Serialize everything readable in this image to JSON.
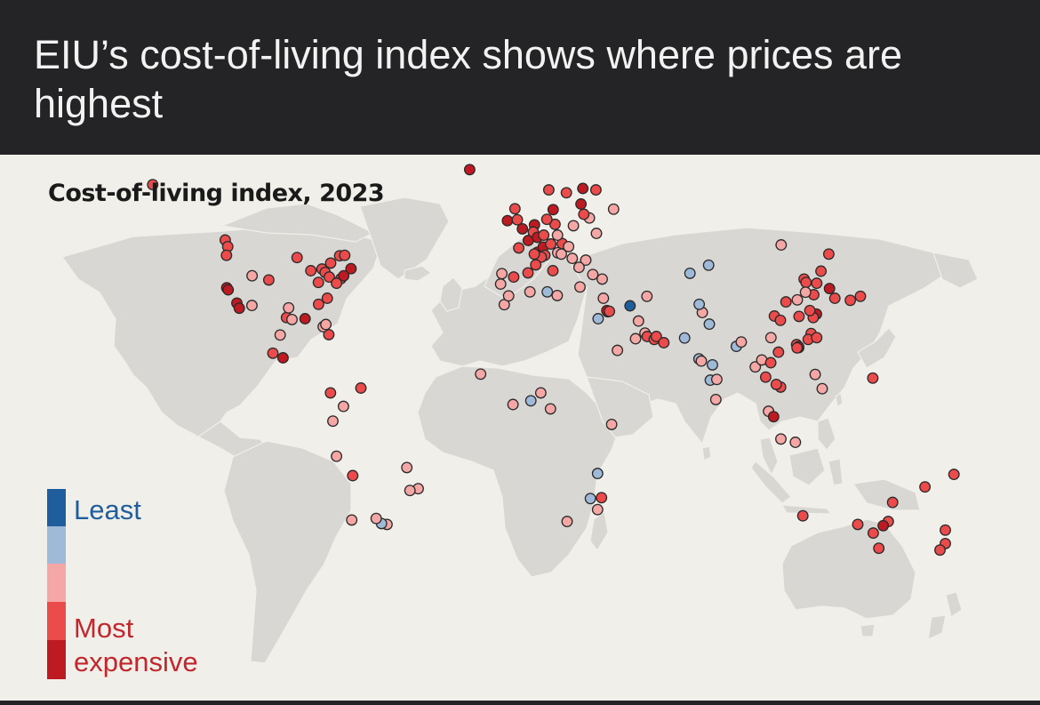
{
  "headline": "EIU’s cost-of-living index shows where prices are highest",
  "chart_title": "Cost-of-living index, 2023",
  "legend": {
    "least_label": "Least",
    "most_label": "Most",
    "expensive_label": "expensive",
    "scale": [
      "#1f5e9c",
      "#9fbad8",
      "#f4a7a5",
      "#ec4b4b",
      "#be1a21"
    ]
  },
  "colors": {
    "land": "#d8d7d3",
    "sea": "#f0efea",
    "header": "#242426",
    "marker_outline": "#2a2a2a"
  },
  "chart_data": {
    "type": "scatter",
    "value_scale": "1 = least expensive ... 5 = most expensive",
    "points": [
      {
        "lon": -153,
        "lat": 61,
        "v": 4
      },
      {
        "lon": -123,
        "lat": 49,
        "v": 4
      },
      {
        "lon": -122,
        "lat": 47.5,
        "v": 4
      },
      {
        "lon": -122.5,
        "lat": 45.5,
        "v": 4
      },
      {
        "lon": -122.4,
        "lat": 37.8,
        "v": 5
      },
      {
        "lon": -121.8,
        "lat": 37.3,
        "v": 5
      },
      {
        "lon": -118.2,
        "lat": 34,
        "v": 5
      },
      {
        "lon": -117.2,
        "lat": 32.7,
        "v": 5
      },
      {
        "lon": -112,
        "lat": 33.4,
        "v": 3
      },
      {
        "lon": -111.9,
        "lat": 40.7,
        "v": 3
      },
      {
        "lon": -105,
        "lat": 39.7,
        "v": 4
      },
      {
        "lon": -97.7,
        "lat": 30.3,
        "v": 4
      },
      {
        "lon": -96.8,
        "lat": 32.8,
        "v": 3
      },
      {
        "lon": -95.4,
        "lat": 29.8,
        "v": 3
      },
      {
        "lon": -90,
        "lat": 30,
        "v": 5
      },
      {
        "lon": -93.3,
        "lat": 45,
        "v": 4
      },
      {
        "lon": -87.6,
        "lat": 41.9,
        "v": 4
      },
      {
        "lon": -83,
        "lat": 42.3,
        "v": 4
      },
      {
        "lon": -81.7,
        "lat": 41.5,
        "v": 4
      },
      {
        "lon": -84.4,
        "lat": 33.7,
        "v": 4
      },
      {
        "lon": -84.5,
        "lat": 39.1,
        "v": 4
      },
      {
        "lon": -79.4,
        "lat": 43.7,
        "v": 4
      },
      {
        "lon": -75.7,
        "lat": 45.4,
        "v": 4
      },
      {
        "lon": -73.6,
        "lat": 45.5,
        "v": 4
      },
      {
        "lon": -80,
        "lat": 40.4,
        "v": 4
      },
      {
        "lon": -75.2,
        "lat": 40,
        "v": 4
      },
      {
        "lon": -74,
        "lat": 40.7,
        "v": 5
      },
      {
        "lon": -71,
        "lat": 42.4,
        "v": 5
      },
      {
        "lon": -77,
        "lat": 38.9,
        "v": 4
      },
      {
        "lon": -80.8,
        "lat": 35.2,
        "v": 4
      },
      {
        "lon": -80.2,
        "lat": 25.8,
        "v": 4
      },
      {
        "lon": -82.5,
        "lat": 27.9,
        "v": 3
      },
      {
        "lon": -81.4,
        "lat": 28.5,
        "v": 3
      },
      {
        "lon": -103.3,
        "lat": 20.7,
        "v": 4
      },
      {
        "lon": -100.3,
        "lat": 25.7,
        "v": 3
      },
      {
        "lon": -99.1,
        "lat": 19.4,
        "v": 5
      },
      {
        "lon": -79.5,
        "lat": 9,
        "v": 4
      },
      {
        "lon": -66.9,
        "lat": 10.5,
        "v": 4
      },
      {
        "lon": -74.1,
        "lat": 4.7,
        "v": 3
      },
      {
        "lon": -78.5,
        "lat": -0.2,
        "v": 3
      },
      {
        "lon": -77,
        "lat": -12,
        "v": 3
      },
      {
        "lon": -70.3,
        "lat": -18.5,
        "v": 4
      },
      {
        "lon": -56.1,
        "lat": -34.9,
        "v": 3
      },
      {
        "lon": -58.4,
        "lat": -34.6,
        "v": 2
      },
      {
        "lon": -60.6,
        "lat": -32.9,
        "v": 3
      },
      {
        "lon": -70.7,
        "lat": -33.4,
        "v": 3
      },
      {
        "lon": -43.2,
        "lat": -22.9,
        "v": 3
      },
      {
        "lon": -46.6,
        "lat": -23.5,
        "v": 3
      },
      {
        "lon": -47.9,
        "lat": -15.8,
        "v": 3
      },
      {
        "lon": -21.9,
        "lat": 64.1,
        "v": 5
      },
      {
        "lon": -6.3,
        "lat": 53.3,
        "v": 5
      },
      {
        "lon": -3.2,
        "lat": 55.9,
        "v": 4
      },
      {
        "lon": -2.2,
        "lat": 53.5,
        "v": 4
      },
      {
        "lon": -0.1,
        "lat": 51.5,
        "v": 5
      },
      {
        "lon": 2.3,
        "lat": 48.9,
        "v": 5
      },
      {
        "lon": 4.9,
        "lat": 52.4,
        "v": 5
      },
      {
        "lon": 4.4,
        "lat": 50.8,
        "v": 4
      },
      {
        "lon": 6.1,
        "lat": 49.6,
        "v": 5
      },
      {
        "lon": 8.7,
        "lat": 50.1,
        "v": 4
      },
      {
        "lon": 6.1,
        "lat": 46.2,
        "v": 5
      },
      {
        "lon": 8.5,
        "lat": 47.4,
        "v": 5
      },
      {
        "lon": 11.6,
        "lat": 48.1,
        "v": 4
      },
      {
        "lon": 13.4,
        "lat": 52.5,
        "v": 4
      },
      {
        "lon": 10,
        "lat": 53.6,
        "v": 4
      },
      {
        "lon": 12.6,
        "lat": 55.7,
        "v": 5
      },
      {
        "lon": 10.8,
        "lat": 59.9,
        "v": 4
      },
      {
        "lon": 18.1,
        "lat": 59.3,
        "v": 4
      },
      {
        "lon": 24.9,
        "lat": 60.2,
        "v": 5
      },
      {
        "lon": 16.4,
        "lat": 48.2,
        "v": 4
      },
      {
        "lon": 14.4,
        "lat": 50.1,
        "v": 3
      },
      {
        "lon": 21,
        "lat": 52.2,
        "v": 3
      },
      {
        "lon": 19,
        "lat": 47.5,
        "v": 3
      },
      {
        "lon": 9.2,
        "lat": 45.5,
        "v": 4
      },
      {
        "lon": 12.5,
        "lat": 41.9,
        "v": 4
      },
      {
        "lon": 7.7,
        "lat": 45.1,
        "v": 4
      },
      {
        "lon": 5.4,
        "lat": 43.3,
        "v": 4
      },
      {
        "lon": 4.8,
        "lat": 45.8,
        "v": 4
      },
      {
        "lon": -1.6,
        "lat": 47.2,
        "v": 4
      },
      {
        "lon": 2.2,
        "lat": 41.4,
        "v": 4
      },
      {
        "lon": -3.7,
        "lat": 40.4,
        "v": 4
      },
      {
        "lon": -9.1,
        "lat": 38.7,
        "v": 3
      },
      {
        "lon": -8.6,
        "lat": 41.2,
        "v": 3
      },
      {
        "lon": 14.5,
        "lat": 46.1,
        "v": 3
      },
      {
        "lon": 16,
        "lat": 45.8,
        "v": 3
      },
      {
        "lon": 20.5,
        "lat": 44.8,
        "v": 3
      },
      {
        "lon": 26.1,
        "lat": 44.4,
        "v": 3
      },
      {
        "lon": 23.3,
        "lat": 42.7,
        "v": 3
      },
      {
        "lon": 23.7,
        "lat": 38,
        "v": 3
      },
      {
        "lon": 29,
        "lat": 41,
        "v": 3
      },
      {
        "lon": 32.9,
        "lat": 39.9,
        "v": 3
      },
      {
        "lon": 30.5,
        "lat": 50.5,
        "v": 3
      },
      {
        "lon": 27.6,
        "lat": 53.9,
        "v": 3
      },
      {
        "lon": 37.6,
        "lat": 55.8,
        "v": 3
      },
      {
        "lon": 30.3,
        "lat": 59.9,
        "v": 4
      },
      {
        "lon": 24.1,
        "lat": 56.9,
        "v": 5
      },
      {
        "lon": 25.3,
        "lat": 54.7,
        "v": 4
      },
      {
        "lon": 14.3,
        "lat": 35.9,
        "v": 3
      },
      {
        "lon": -7.6,
        "lat": 33.6,
        "v": 3
      },
      {
        "lon": -5.8,
        "lat": 35.8,
        "v": 3
      },
      {
        "lon": 3,
        "lat": 36.8,
        "v": 3
      },
      {
        "lon": 10.2,
        "lat": 36.8,
        "v": 2
      },
      {
        "lon": 31.2,
        "lat": 30,
        "v": 2
      },
      {
        "lon": 33.4,
        "lat": 35.2,
        "v": 3
      },
      {
        "lon": 35.2,
        "lat": 31.8,
        "v": 5
      },
      {
        "lon": 34.8,
        "lat": 32.1,
        "v": 5
      },
      {
        "lon": 35.9,
        "lat": 31.9,
        "v": 4
      },
      {
        "lon": 44.4,
        "lat": 33.3,
        "v": 1
      },
      {
        "lon": 51.4,
        "lat": 35.7,
        "v": 3
      },
      {
        "lon": 47.9,
        "lat": 29.4,
        "v": 3
      },
      {
        "lon": 50.6,
        "lat": 26.2,
        "v": 3
      },
      {
        "lon": 51.5,
        "lat": 25.3,
        "v": 4
      },
      {
        "lon": 54.4,
        "lat": 24.5,
        "v": 4
      },
      {
        "lon": 55.3,
        "lat": 25.3,
        "v": 4
      },
      {
        "lon": 58.4,
        "lat": 23.6,
        "v": 4
      },
      {
        "lon": 46.7,
        "lat": 24.7,
        "v": 3
      },
      {
        "lon": 39.2,
        "lat": 21.5,
        "v": 3
      },
      {
        "lon": 69.2,
        "lat": 41.3,
        "v": 2
      },
      {
        "lon": 76.9,
        "lat": 43.2,
        "v": 2
      },
      {
        "lon": 67,
        "lat": 24.9,
        "v": 2
      },
      {
        "lon": 74.3,
        "lat": 31.6,
        "v": 3
      },
      {
        "lon": 73,
        "lat": 33.7,
        "v": 2
      },
      {
        "lon": 77.2,
        "lat": 28.6,
        "v": 2
      },
      {
        "lon": 72.9,
        "lat": 19.1,
        "v": 2
      },
      {
        "lon": 73.9,
        "lat": 18.5,
        "v": 3
      },
      {
        "lon": 77.6,
        "lat": 12.9,
        "v": 2
      },
      {
        "lon": 78.5,
        "lat": 17.4,
        "v": 2
      },
      {
        "lon": 80.3,
        "lat": 13.1,
        "v": 3
      },
      {
        "lon": 79.9,
        "lat": 6.9,
        "v": 3
      },
      {
        "lon": 88.4,
        "lat": 22.6,
        "v": 2
      },
      {
        "lon": 90.4,
        "lat": 23.8,
        "v": 3
      },
      {
        "lon": 96.2,
        "lat": 16.8,
        "v": 3
      },
      {
        "lon": -17.4,
        "lat": 14.7,
        "v": 3
      },
      {
        "lon": -4,
        "lat": 5.3,
        "v": 3
      },
      {
        "lon": 3.4,
        "lat": 6.5,
        "v": 2
      },
      {
        "lon": 7.5,
        "lat": 9,
        "v": 3
      },
      {
        "lon": 11.5,
        "lat": 3.9,
        "v": 3
      },
      {
        "lon": 36.8,
        "lat": -1.3,
        "v": 3
      },
      {
        "lon": 31,
        "lat": -17.8,
        "v": 2
      },
      {
        "lon": 32.6,
        "lat": -25.9,
        "v": 4
      },
      {
        "lon": 28,
        "lat": -26.2,
        "v": 2
      },
      {
        "lon": 31,
        "lat": -29.9,
        "v": 3
      },
      {
        "lon": 18.4,
        "lat": -33.9,
        "v": 3
      },
      {
        "lon": 100.5,
        "lat": 13.8,
        "v": 4
      },
      {
        "lon": 98.9,
        "lat": 18.8,
        "v": 3
      },
      {
        "lon": 102.6,
        "lat": 18,
        "v": 4
      },
      {
        "lon": 105.8,
        "lat": 21,
        "v": 4
      },
      {
        "lon": 106.7,
        "lat": 10.8,
        "v": 4
      },
      {
        "lon": 104.9,
        "lat": 11.6,
        "v": 4
      },
      {
        "lon": 101.7,
        "lat": 3.1,
        "v": 3
      },
      {
        "lon": 103.8,
        "lat": 1.3,
        "v": 5
      },
      {
        "lon": 106.8,
        "lat": -6.2,
        "v": 3
      },
      {
        "lon": 112.8,
        "lat": -7.3,
        "v": 3
      },
      {
        "lon": 121,
        "lat": 14.6,
        "v": 3
      },
      {
        "lon": 123.9,
        "lat": 10.3,
        "v": 3
      },
      {
        "lon": 114.2,
        "lat": 22.3,
        "v": 5
      },
      {
        "lon": 113.3,
        "lat": 23.1,
        "v": 4
      },
      {
        "lon": 114.1,
        "lat": 22.5,
        "v": 5
      },
      {
        "lon": 113.5,
        "lat": 22.2,
        "v": 4
      },
      {
        "lon": 116.4,
        "lat": 39.9,
        "v": 4
      },
      {
        "lon": 117.2,
        "lat": 39.1,
        "v": 4
      },
      {
        "lon": 121.5,
        "lat": 31.2,
        "v": 5
      },
      {
        "lon": 120.2,
        "lat": 30.3,
        "v": 4
      },
      {
        "lon": 118.8,
        "lat": 32.1,
        "v": 4
      },
      {
        "lon": 114.3,
        "lat": 30.6,
        "v": 4
      },
      {
        "lon": 104.1,
        "lat": 30.7,
        "v": 4
      },
      {
        "lon": 106.6,
        "lat": 29.6,
        "v": 4
      },
      {
        "lon": 108.9,
        "lat": 34.3,
        "v": 4
      },
      {
        "lon": 113.6,
        "lat": 34.8,
        "v": 3
      },
      {
        "lon": 123.4,
        "lat": 41.8,
        "v": 4
      },
      {
        "lon": 126.6,
        "lat": 45.8,
        "v": 4
      },
      {
        "lon": 121.6,
        "lat": 38.9,
        "v": 4
      },
      {
        "lon": 120.4,
        "lat": 36.1,
        "v": 4
      },
      {
        "lon": 117,
        "lat": 36.7,
        "v": 3
      },
      {
        "lon": 119.3,
        "lat": 26.1,
        "v": 4
      },
      {
        "lon": 118.1,
        "lat": 24.5,
        "v": 4
      },
      {
        "lon": 121.6,
        "lat": 25,
        "v": 4
      },
      {
        "lon": 126.9,
        "lat": 37.6,
        "v": 5
      },
      {
        "lon": 129.1,
        "lat": 35.2,
        "v": 4
      },
      {
        "lon": 135.5,
        "lat": 34.7,
        "v": 4
      },
      {
        "lon": 139.7,
        "lat": 35.7,
        "v": 4
      },
      {
        "lon": 106.9,
        "lat": 47.9,
        "v": 3
      },
      {
        "lon": 102.7,
        "lat": 25,
        "v": 3
      },
      {
        "lon": 144.8,
        "lat": 13.5,
        "v": 4
      },
      {
        "lon": 166.4,
        "lat": -22.3,
        "v": 4
      },
      {
        "lon": 178.4,
        "lat": -18.1,
        "v": 4
      },
      {
        "lon": 115.9,
        "lat": -32,
        "v": 4
      },
      {
        "lon": 153,
        "lat": -27.5,
        "v": 4
      },
      {
        "lon": 151.2,
        "lat": -33.9,
        "v": 4
      },
      {
        "lon": 149.1,
        "lat": -35.3,
        "v": 5
      },
      {
        "lon": 145,
        "lat": -37.8,
        "v": 4
      },
      {
        "lon": 138.6,
        "lat": -34.9,
        "v": 4
      },
      {
        "lon": 147.3,
        "lat": -42.9,
        "v": 4
      },
      {
        "lon": 174.8,
        "lat": -36.8,
        "v": 4
      },
      {
        "lon": 174.8,
        "lat": -41.3,
        "v": 4
      },
      {
        "lon": 172.6,
        "lat": -43.5,
        "v": 4
      }
    ]
  }
}
